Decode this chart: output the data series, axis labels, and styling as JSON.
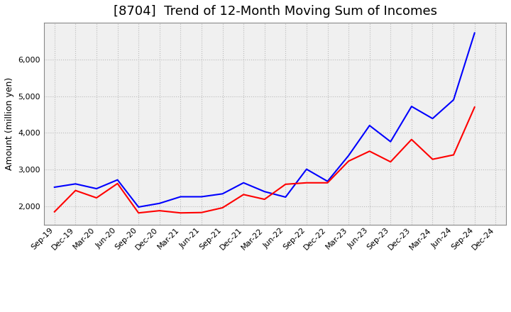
{
  "title": "[8704]  Trend of 12-Month Moving Sum of Incomes",
  "ylabel": "Amount (million yen)",
  "x_labels": [
    "Sep-19",
    "Dec-19",
    "Mar-20",
    "Jun-20",
    "Sep-20",
    "Dec-20",
    "Mar-21",
    "Jun-21",
    "Sep-21",
    "Dec-21",
    "Mar-22",
    "Jun-22",
    "Sep-22",
    "Dec-22",
    "Mar-23",
    "Jun-23",
    "Sep-23",
    "Dec-23",
    "Mar-24",
    "Jun-24",
    "Sep-24",
    "Dec-24"
  ],
  "ordinary_income": [
    2520,
    2610,
    2480,
    2720,
    1980,
    2080,
    2260,
    2260,
    2340,
    2640,
    2400,
    2250,
    3010,
    2680,
    3380,
    4200,
    3760,
    4720,
    4390,
    4900,
    6720,
    null
  ],
  "net_income": [
    1850,
    2430,
    2230,
    2620,
    1820,
    1880,
    1820,
    1830,
    1960,
    2320,
    2190,
    2600,
    2640,
    2640,
    3230,
    3500,
    3210,
    3820,
    3280,
    3400,
    4700,
    null
  ],
  "ordinary_color": "#0000ff",
  "net_color": "#ff0000",
  "ylim": [
    1500,
    7000
  ],
  "yticks": [
    2000,
    3000,
    4000,
    5000,
    6000
  ],
  "plot_bg_color": "#f0f0f0",
  "fig_bg_color": "#ffffff",
  "grid_color": "#bbbbbb",
  "title_fontsize": 13,
  "ylabel_fontsize": 9,
  "tick_fontsize": 8
}
